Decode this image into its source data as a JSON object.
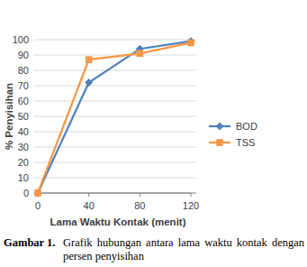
{
  "chart_data": {
    "type": "line",
    "x_label": "Lama Waktu Kontak (menit)",
    "y_label": "% Penyisihan",
    "x": [
      0,
      40,
      80,
      120
    ],
    "series": [
      {
        "name": "BOD",
        "color": "#4f81bd",
        "marker": "diamond",
        "values": [
          0,
          72,
          94,
          99
        ]
      },
      {
        "name": "TSS",
        "color": "#f79646",
        "marker": "square",
        "values": [
          0,
          87,
          91,
          98
        ]
      }
    ],
    "xlim": [
      0,
      120
    ],
    "xticks": [
      0,
      40,
      80,
      120
    ],
    "ylim": [
      0,
      100
    ],
    "yticks": [
      0,
      10,
      20,
      30,
      40,
      50,
      60,
      70,
      80,
      90,
      100
    ],
    "grid": true,
    "legend": "right"
  },
  "caption": {
    "label": "Gambar 1.",
    "text": "Grafik hubungan antara lama waktu kontak dengan persen penyisihan"
  }
}
